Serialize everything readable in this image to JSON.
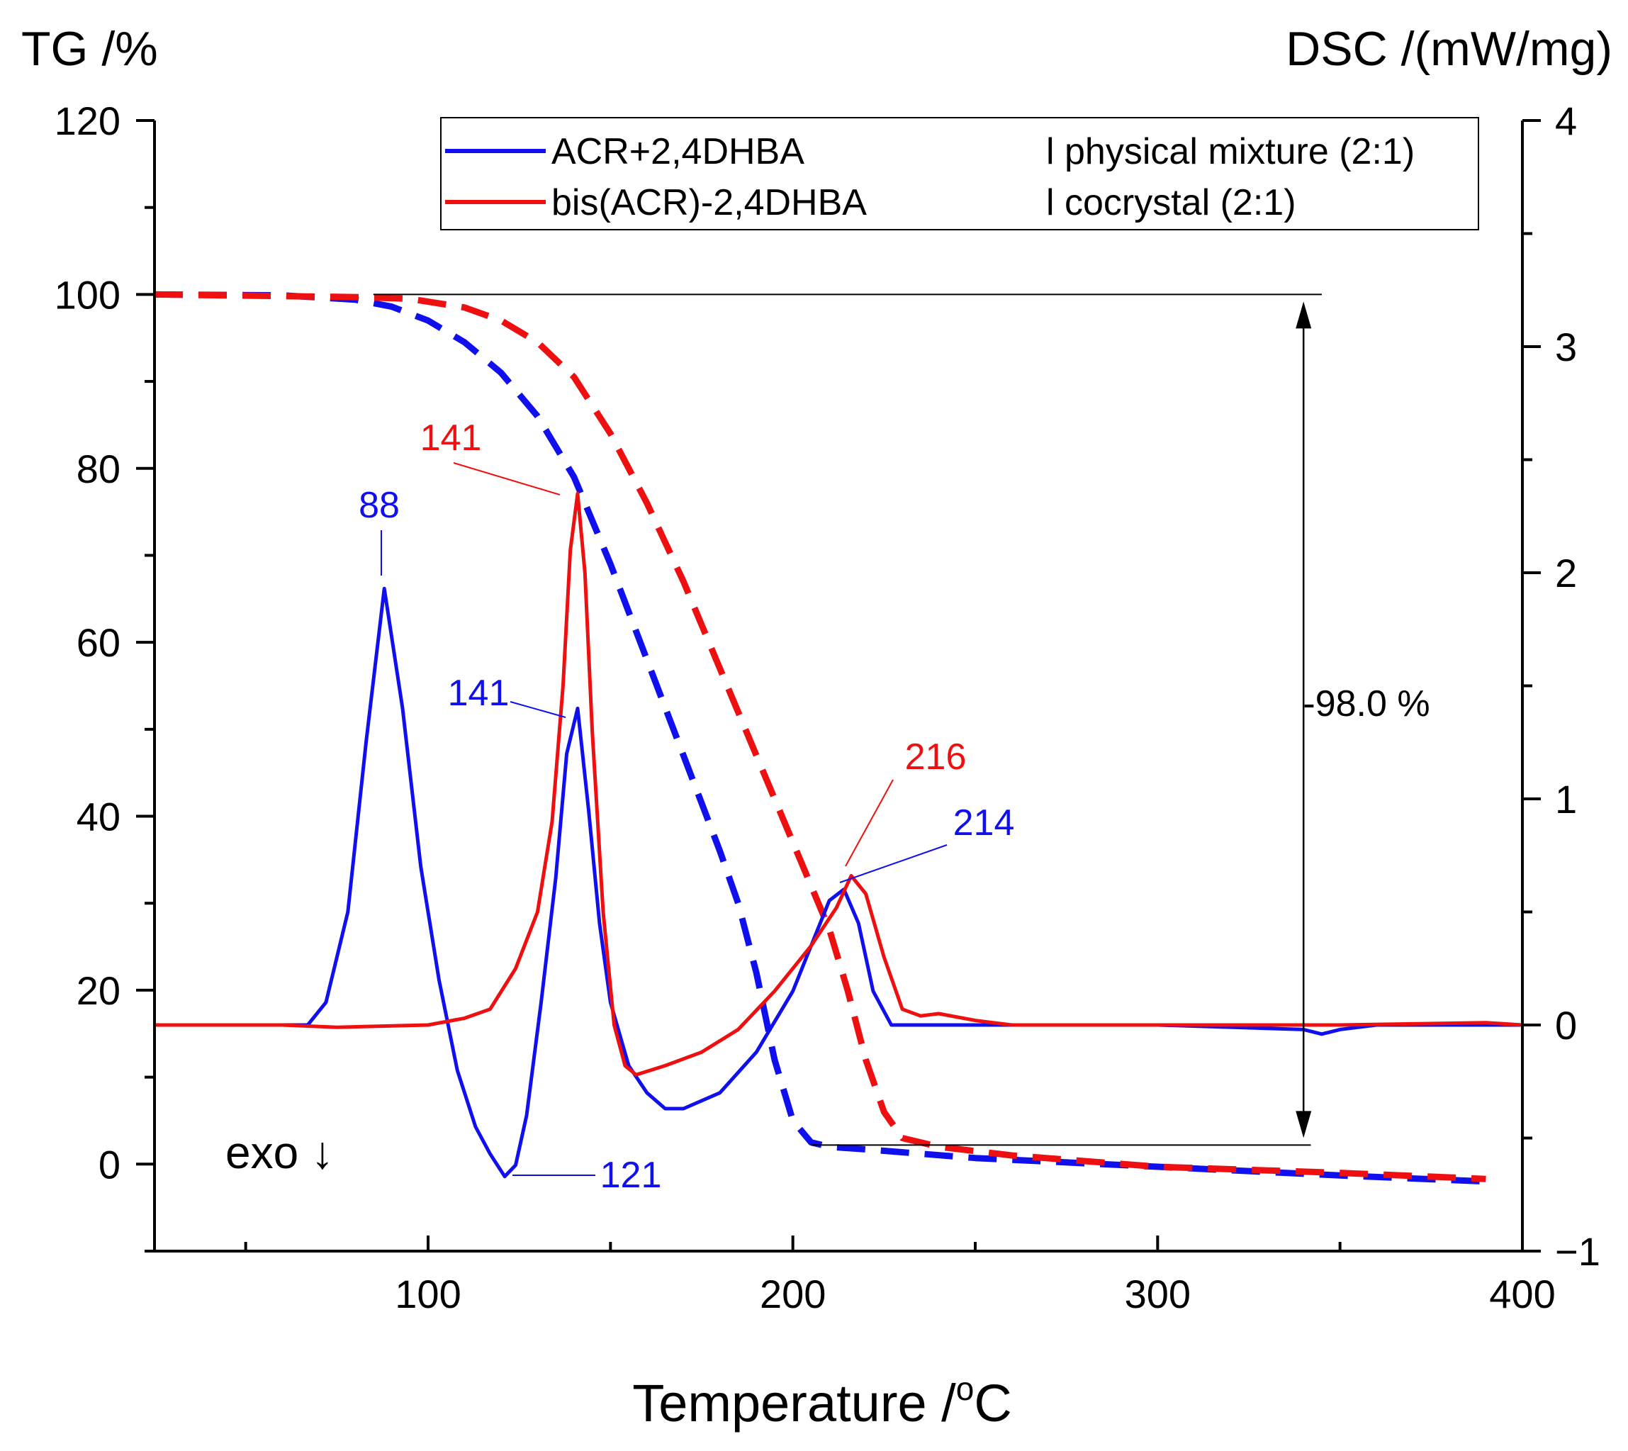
{
  "chart_data": {
    "type": "line",
    "y_left_label": "TG /%",
    "y_right_label": "DSC /(mW/mg)",
    "xlabel_main": "Temperature /",
    "xlabel_sup": "o",
    "xlabel_tail": "C",
    "xlim": [
      25,
      400
    ],
    "ylim_left": [
      -10,
      120
    ],
    "ylim_right": [
      -1,
      4
    ],
    "x_ticks": [
      100,
      200,
      300,
      400
    ],
    "x_ticks_minor": [
      50,
      150,
      250,
      350
    ],
    "y_left_ticks": [
      0,
      20,
      40,
      60,
      80,
      100,
      120
    ],
    "y_right_ticks": [
      -1,
      0,
      1,
      2,
      3,
      4
    ],
    "y_right_tick_labels": [
      "−1",
      "0",
      "1",
      "2",
      "3",
      "4"
    ],
    "legend": {
      "position": "top-right",
      "entries": [
        {
          "name": "ACR+2,4DHBA",
          "description": "l physical mixture (2:1)",
          "color": "#1010ee"
        },
        {
          "name": "bis(ACR)-2,4DHBA",
          "description": "l cocrystal (2:1)",
          "color": "#ee1010"
        }
      ]
    },
    "series": [
      {
        "name": "ACR+2,4DHBA",
        "kind": "TG",
        "axis": "left",
        "style": "dashed",
        "color": "#1010ee",
        "points": [
          [
            25,
            100
          ],
          [
            60,
            99.9
          ],
          [
            80,
            99.4
          ],
          [
            90,
            98.6
          ],
          [
            100,
            97
          ],
          [
            110,
            94.5
          ],
          [
            120,
            91
          ],
          [
            130,
            86
          ],
          [
            140,
            79
          ],
          [
            150,
            69
          ],
          [
            160,
            58
          ],
          [
            170,
            47
          ],
          [
            180,
            36
          ],
          [
            185,
            30
          ],
          [
            190,
            22
          ],
          [
            195,
            12
          ],
          [
            200,
            5
          ],
          [
            205,
            2.5
          ],
          [
            210,
            2
          ],
          [
            220,
            1.7
          ],
          [
            250,
            0.7
          ],
          [
            300,
            -0.3
          ],
          [
            350,
            -1.3
          ],
          [
            390,
            -2
          ]
        ]
      },
      {
        "name": "bis(ACR)-2,4DHBA",
        "kind": "TG",
        "axis": "left",
        "style": "dashed",
        "color": "#ee1010",
        "points": [
          [
            25,
            100
          ],
          [
            80,
            99.7
          ],
          [
            95,
            99.5
          ],
          [
            110,
            98.5
          ],
          [
            120,
            97
          ],
          [
            130,
            94.5
          ],
          [
            140,
            90.5
          ],
          [
            150,
            84
          ],
          [
            160,
            76
          ],
          [
            170,
            67
          ],
          [
            180,
            57
          ],
          [
            190,
            47
          ],
          [
            200,
            37
          ],
          [
            210,
            27
          ],
          [
            215,
            20
          ],
          [
            220,
            12
          ],
          [
            225,
            6
          ],
          [
            230,
            3
          ],
          [
            240,
            2
          ],
          [
            260,
            1
          ],
          [
            300,
            -0.3
          ],
          [
            350,
            -1
          ],
          [
            390,
            -1.7
          ]
        ]
      },
      {
        "name": "ACR+2,4DHBA",
        "kind": "DSC",
        "axis": "right",
        "style": "solid",
        "color": "#1010ee",
        "points": [
          [
            25,
            0
          ],
          [
            60,
            0
          ],
          [
            67,
            0
          ],
          [
            72,
            0.1
          ],
          [
            78,
            0.5
          ],
          [
            83,
            1.25
          ],
          [
            88,
            1.93
          ],
          [
            93,
            1.4
          ],
          [
            98,
            0.7
          ],
          [
            103,
            0.2
          ],
          [
            108,
            -0.2
          ],
          [
            113,
            -0.45
          ],
          [
            117,
            -0.57
          ],
          [
            121,
            -0.67
          ],
          [
            124,
            -0.62
          ],
          [
            127,
            -0.4
          ],
          [
            131,
            0.1
          ],
          [
            135,
            0.65
          ],
          [
            138,
            1.2
          ],
          [
            141,
            1.4
          ],
          [
            144,
            0.95
          ],
          [
            147,
            0.45
          ],
          [
            150,
            0.1
          ],
          [
            155,
            -0.18
          ],
          [
            160,
            -0.3
          ],
          [
            165,
            -0.37
          ],
          [
            170,
            -0.37
          ],
          [
            180,
            -0.3
          ],
          [
            190,
            -0.12
          ],
          [
            200,
            0.15
          ],
          [
            205,
            0.35
          ],
          [
            210,
            0.55
          ],
          [
            214,
            0.6
          ],
          [
            218,
            0.45
          ],
          [
            222,
            0.15
          ],
          [
            227,
            0
          ],
          [
            235,
            0
          ],
          [
            260,
            0
          ],
          [
            300,
            0
          ],
          [
            340,
            -0.02
          ],
          [
            345,
            -0.04
          ],
          [
            350,
            -0.02
          ],
          [
            360,
            0
          ],
          [
            400,
            0
          ]
        ]
      },
      {
        "name": "bis(ACR)-2,4DHBA",
        "kind": "DSC",
        "axis": "right",
        "style": "solid",
        "color": "#ee1010",
        "points": [
          [
            25,
            0
          ],
          [
            60,
            0
          ],
          [
            75,
            -0.01
          ],
          [
            100,
            0
          ],
          [
            110,
            0.03
          ],
          [
            117,
            0.07
          ],
          [
            124,
            0.25
          ],
          [
            130,
            0.5
          ],
          [
            134,
            0.9
          ],
          [
            137,
            1.5
          ],
          [
            139,
            2.1
          ],
          [
            141,
            2.35
          ],
          [
            143,
            2.0
          ],
          [
            145,
            1.3
          ],
          [
            148,
            0.5
          ],
          [
            151,
            0.0
          ],
          [
            154,
            -0.18
          ],
          [
            157,
            -0.22
          ],
          [
            165,
            -0.18
          ],
          [
            175,
            -0.12
          ],
          [
            185,
            -0.02
          ],
          [
            195,
            0.15
          ],
          [
            205,
            0.35
          ],
          [
            212,
            0.52
          ],
          [
            216,
            0.66
          ],
          [
            220,
            0.58
          ],
          [
            225,
            0.3
          ],
          [
            230,
            0.07
          ],
          [
            235,
            0.04
          ],
          [
            240,
            0.05
          ],
          [
            250,
            0.02
          ],
          [
            260,
            0
          ],
          [
            300,
            0
          ],
          [
            350,
            0
          ],
          [
            390,
            0.01
          ],
          [
            400,
            0
          ]
        ]
      }
    ],
    "annotations": {
      "peaks": [
        {
          "label": "88",
          "color": "#1010ee",
          "x": 88,
          "y_right": 1.93
        },
        {
          "label": "141",
          "color": "#ee1010",
          "x": 141,
          "y_right": 2.35
        },
        {
          "label": "141",
          "color": "#1010ee",
          "x": 141,
          "y_right": 1.4
        },
        {
          "label": "216",
          "color": "#ee1010",
          "x": 216,
          "y_right": 0.66
        },
        {
          "label": "214",
          "color": "#1010ee",
          "x": 214,
          "y_right": 0.6
        },
        {
          "label": "121",
          "color": "#1010ee",
          "x": 121,
          "y_right": -0.67
        }
      ],
      "mass_loss": {
        "label": "-98.0 %",
        "top_tg": 100,
        "bottom_tg": 2.2,
        "x_start_top": 85,
        "x_start_bottom": 205,
        "x_end_top": 345,
        "x_end_bottom": 342,
        "arrow_x": 340
      },
      "exo_label": "exo ↓"
    }
  }
}
